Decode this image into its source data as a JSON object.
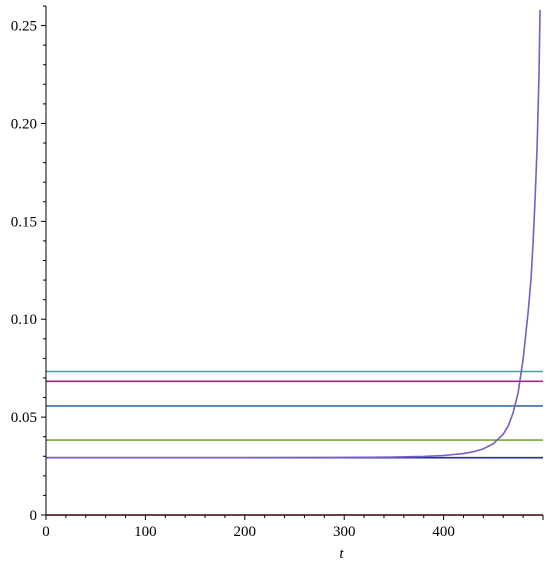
{
  "chart_data": {
    "type": "line",
    "title": "",
    "xlabel": "t",
    "ylabel": "",
    "xlim": [
      0,
      500
    ],
    "ylim": [
      0,
      0.26
    ],
    "grid": false,
    "legend": "none",
    "x_ticks": [
      0,
      100,
      200,
      300,
      400
    ],
    "x_tick_labels": [
      "0",
      "100",
      "200",
      "300",
      "400"
    ],
    "y_ticks": [
      0,
      0.05,
      0.1,
      0.15,
      0.2,
      0.25
    ],
    "y_tick_labels": [
      "0",
      "0.05",
      "0.10",
      "0.15",
      "0.20",
      "0.25"
    ],
    "series": [
      {
        "color": "#3fa3a8",
        "x": [
          0,
          500
        ],
        "y": [
          0.0733,
          0.0733
        ]
      },
      {
        "color": "#9a2a8e",
        "x": [
          0,
          500
        ],
        "y": [
          0.0683,
          0.0683
        ]
      },
      {
        "color": "#3a6fa0",
        "x": [
          0,
          500
        ],
        "y": [
          0.0557,
          0.0557
        ]
      },
      {
        "color": "#7aa82c",
        "x": [
          0,
          500
        ],
        "y": [
          0.0383,
          0.0383
        ]
      },
      {
        "color": "#1f2f8a",
        "x": [
          0,
          500
        ],
        "y": [
          0.0293,
          0.0293
        ]
      },
      {
        "color": "#8a1a1a",
        "x": [
          0,
          500
        ],
        "y": [
          0.0,
          0.0
        ]
      },
      {
        "color": "#7b5cc4",
        "x": [
          0,
          100,
          200,
          300,
          350,
          380,
          400,
          420,
          430,
          440,
          450,
          460,
          465,
          470,
          475,
          480,
          485,
          488,
          490,
          492,
          494,
          496,
          497
        ],
        "y": [
          0.0293,
          0.0293,
          0.0293,
          0.0294,
          0.0296,
          0.0299,
          0.0304,
          0.0314,
          0.0323,
          0.0338,
          0.0364,
          0.0413,
          0.0455,
          0.0523,
          0.0625,
          0.0796,
          0.1034,
          0.121,
          0.139,
          0.161,
          0.187,
          0.225,
          0.258
        ]
      }
    ]
  }
}
